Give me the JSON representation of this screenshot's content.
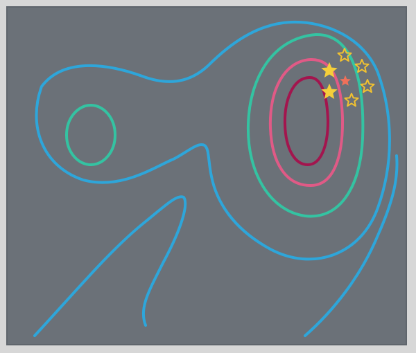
{
  "diagram": {
    "colors": {
      "page_background": "#d7d7d7",
      "panel_background": "#6b7178",
      "panel_border": "#5f656c",
      "contour_outer": "#2ea6da",
      "contour_mid": "#34c3a2",
      "contour_inner": "#e05a86",
      "contour_core": "#a3154e",
      "star_fill": "#f5cf3a",
      "star_outline": "#f2c230",
      "star_center": "#f0705a"
    },
    "elements": {
      "contours": [
        {
          "name": "outer-contour-main",
          "color_key": "contour_outer"
        },
        {
          "name": "outer-contour-left-tail",
          "color_key": "contour_outer"
        },
        {
          "name": "outer-contour-right-tail",
          "color_key": "contour_outer"
        },
        {
          "name": "left-peak-contour",
          "color_key": "contour_mid"
        },
        {
          "name": "right-mid-contour",
          "color_key": "contour_mid"
        },
        {
          "name": "right-inner-contour",
          "color_key": "contour_inner"
        },
        {
          "name": "right-core-contour",
          "color_key": "contour_core"
        }
      ],
      "stars": [
        {
          "name": "filled-star-1",
          "style": "filled"
        },
        {
          "name": "filled-star-2",
          "style": "filled"
        },
        {
          "name": "outline-star-1",
          "style": "outline"
        },
        {
          "name": "outline-star-2",
          "style": "outline"
        },
        {
          "name": "outline-star-3",
          "style": "outline"
        },
        {
          "name": "outline-star-4",
          "style": "outline"
        },
        {
          "name": "center-star",
          "style": "filled-small"
        }
      ]
    }
  }
}
